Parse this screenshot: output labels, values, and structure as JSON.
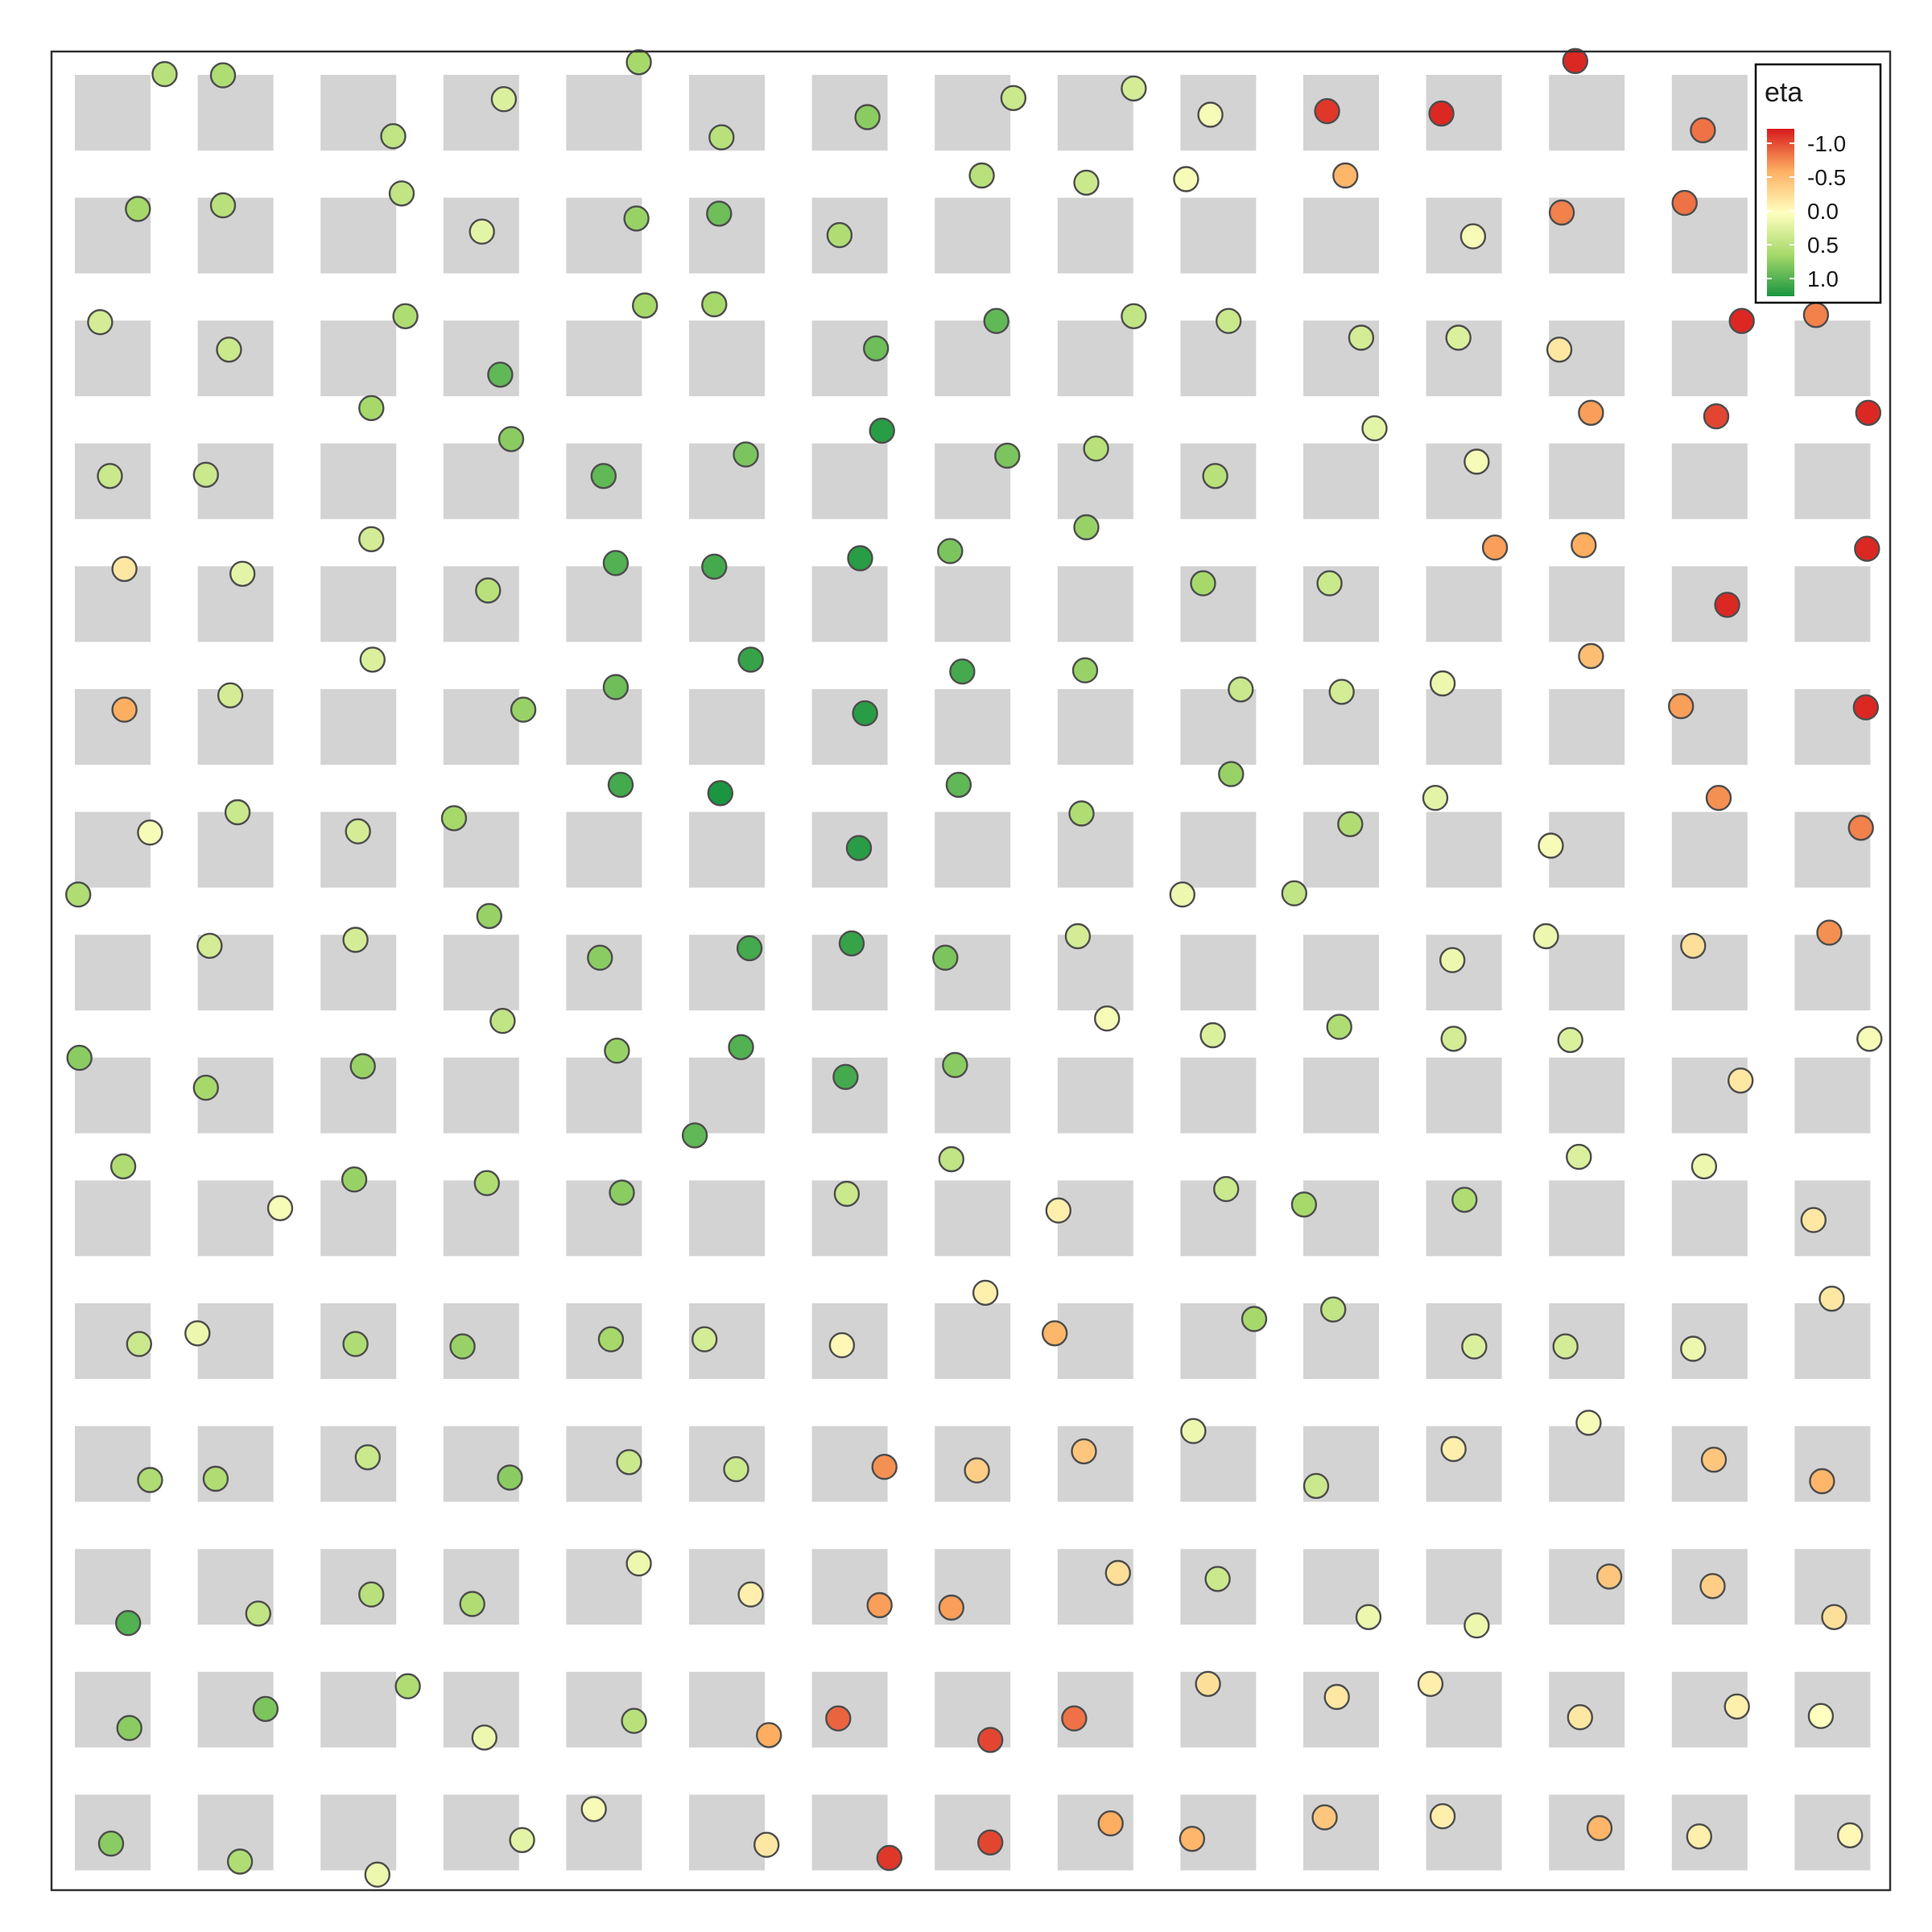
{
  "chart_data": {
    "type": "scatter",
    "xlim": [
      0,
      15
    ],
    "ylim": [
      0,
      15
    ],
    "grid_cells": {
      "columns": 15,
      "rows": 15
    },
    "background_tiles": "light-gray square per grid cell",
    "colors": {
      "plot_background": "#ffffff",
      "tile": "#d3d3d3",
      "border": "#333333",
      "point_outline": "#4d4d4d"
    },
    "legend": {
      "title": "eta",
      "placement": "top-right inside plot",
      "ticks": [
        -1.0,
        -0.5,
        0.0,
        0.5,
        1.0
      ],
      "tick_labels": [
        "-1.0",
        "-0.5",
        "0.0",
        "0.5",
        "1.0"
      ],
      "palette": "RdYlGn",
      "color_stops": [
        "#d7191c",
        "#fdae61",
        "#ffffbf",
        "#a6d96a",
        "#1a9641"
      ]
    },
    "points": [
      {
        "x": 0.59,
        "y": 14.76,
        "eta": 0.4
      },
      {
        "x": 1.07,
        "y": 14.75,
        "eta": 0.45
      },
      {
        "x": 2.47,
        "y": 14.24,
        "eta": 0.35
      },
      {
        "x": 3.38,
        "y": 14.55,
        "eta": 0.2
      },
      {
        "x": 4.49,
        "y": 14.86,
        "eta": 0.5
      },
      {
        "x": 5.17,
        "y": 14.23,
        "eta": 0.4
      },
      {
        "x": 6.37,
        "y": 14.4,
        "eta": 0.6
      },
      {
        "x": 7.57,
        "y": 14.56,
        "eta": 0.3
      },
      {
        "x": 8.56,
        "y": 14.64,
        "eta": 0.25
      },
      {
        "x": 9.19,
        "y": 14.42,
        "eta": 0.05
      },
      {
        "x": 10.15,
        "y": 14.45,
        "eta": -0.9
      },
      {
        "x": 11.09,
        "y": 14.43,
        "eta": -0.95
      },
      {
        "x": 12.19,
        "y": 14.87,
        "eta": -0.95
      },
      {
        "x": 13.24,
        "y": 14.29,
        "eta": -0.7
      },
      {
        "x": 0.37,
        "y": 13.63,
        "eta": 0.5
      },
      {
        "x": 1.07,
        "y": 13.66,
        "eta": 0.4
      },
      {
        "x": 2.54,
        "y": 13.76,
        "eta": 0.35
      },
      {
        "x": 3.2,
        "y": 13.44,
        "eta": 0.15
      },
      {
        "x": 4.47,
        "y": 13.55,
        "eta": 0.55
      },
      {
        "x": 5.15,
        "y": 13.59,
        "eta": 0.7
      },
      {
        "x": 6.14,
        "y": 13.41,
        "eta": 0.45
      },
      {
        "x": 7.31,
        "y": 13.91,
        "eta": 0.4
      },
      {
        "x": 8.17,
        "y": 13.85,
        "eta": 0.3
      },
      {
        "x": 8.99,
        "y": 13.88,
        "eta": 0.05
      },
      {
        "x": 10.3,
        "y": 13.91,
        "eta": -0.45
      },
      {
        "x": 11.35,
        "y": 13.4,
        "eta": 0.05
      },
      {
        "x": 12.08,
        "y": 13.6,
        "eta": -0.65
      },
      {
        "x": 13.09,
        "y": 13.68,
        "eta": -0.7
      },
      {
        "x": 0.06,
        "y": 12.68,
        "eta": 0.25
      },
      {
        "x": 1.12,
        "y": 12.45,
        "eta": 0.3
      },
      {
        "x": 2.57,
        "y": 12.73,
        "eta": 0.45
      },
      {
        "x": 3.35,
        "y": 12.24,
        "eta": 0.75
      },
      {
        "x": 4.54,
        "y": 12.82,
        "eta": 0.5
      },
      {
        "x": 5.11,
        "y": 12.83,
        "eta": 0.5
      },
      {
        "x": 6.44,
        "y": 12.46,
        "eta": 0.7
      },
      {
        "x": 7.43,
        "y": 12.69,
        "eta": 0.75
      },
      {
        "x": 8.56,
        "y": 12.73,
        "eta": 0.35
      },
      {
        "x": 9.34,
        "y": 12.69,
        "eta": 0.3
      },
      {
        "x": 10.43,
        "y": 12.55,
        "eta": 0.25
      },
      {
        "x": 11.23,
        "y": 12.55,
        "eta": 0.2
      },
      {
        "x": 12.06,
        "y": 12.45,
        "eta": -0.15
      },
      {
        "x": 13.56,
        "y": 12.69,
        "eta": -0.95
      },
      {
        "x": 14.17,
        "y": 12.74,
        "eta": -0.65
      },
      {
        "x": 0.14,
        "y": 11.39,
        "eta": 0.3
      },
      {
        "x": 0.93,
        "y": 11.4,
        "eta": 0.3
      },
      {
        "x": 2.29,
        "y": 11.96,
        "eta": 0.5
      },
      {
        "x": 3.44,
        "y": 11.7,
        "eta": 0.6
      },
      {
        "x": 4.2,
        "y": 11.39,
        "eta": 0.75
      },
      {
        "x": 5.37,
        "y": 11.57,
        "eta": 0.65
      },
      {
        "x": 6.49,
        "y": 11.77,
        "eta": 0.95
      },
      {
        "x": 7.52,
        "y": 11.56,
        "eta": 0.65
      },
      {
        "x": 8.25,
        "y": 11.62,
        "eta": 0.4
      },
      {
        "x": 9.23,
        "y": 11.39,
        "eta": 0.4
      },
      {
        "x": 10.54,
        "y": 11.79,
        "eta": 0.15
      },
      {
        "x": 11.38,
        "y": 11.51,
        "eta": 0.05
      },
      {
        "x": 12.32,
        "y": 11.92,
        "eta": -0.55
      },
      {
        "x": 13.35,
        "y": 11.89,
        "eta": -0.85
      },
      {
        "x": 14.6,
        "y": 11.92,
        "eta": -0.95
      },
      {
        "x": 0.26,
        "y": 10.61,
        "eta": -0.15
      },
      {
        "x": 1.23,
        "y": 10.57,
        "eta": 0.15
      },
      {
        "x": 2.29,
        "y": 10.86,
        "eta": 0.25
      },
      {
        "x": 3.25,
        "y": 10.43,
        "eta": 0.4
      },
      {
        "x": 4.3,
        "y": 10.66,
        "eta": 0.8
      },
      {
        "x": 5.11,
        "y": 10.63,
        "eta": 0.85
      },
      {
        "x": 6.31,
        "y": 10.7,
        "eta": 0.95
      },
      {
        "x": 7.05,
        "y": 10.76,
        "eta": 0.65
      },
      {
        "x": 8.17,
        "y": 10.96,
        "eta": 0.55
      },
      {
        "x": 9.13,
        "y": 10.49,
        "eta": 0.5
      },
      {
        "x": 10.17,
        "y": 10.49,
        "eta": 0.3
      },
      {
        "x": 11.53,
        "y": 10.79,
        "eta": -0.55
      },
      {
        "x": 12.26,
        "y": 10.81,
        "eta": -0.5
      },
      {
        "x": 13.44,
        "y": 10.31,
        "eta": -0.95
      },
      {
        "x": 14.59,
        "y": 10.78,
        "eta": -0.95
      },
      {
        "x": 0.26,
        "y": 9.43,
        "eta": -0.5
      },
      {
        "x": 1.13,
        "y": 9.55,
        "eta": 0.25
      },
      {
        "x": 2.3,
        "y": 9.85,
        "eta": 0.2
      },
      {
        "x": 3.54,
        "y": 9.43,
        "eta": 0.55
      },
      {
        "x": 4.3,
        "y": 9.62,
        "eta": 0.7
      },
      {
        "x": 5.41,
        "y": 9.85,
        "eta": 0.9
      },
      {
        "x": 6.35,
        "y": 9.4,
        "eta": 0.95
      },
      {
        "x": 7.15,
        "y": 9.75,
        "eta": 0.85
      },
      {
        "x": 8.16,
        "y": 9.76,
        "eta": 0.55
      },
      {
        "x": 9.44,
        "y": 9.6,
        "eta": 0.3
      },
      {
        "x": 10.27,
        "y": 9.58,
        "eta": 0.25
      },
      {
        "x": 11.1,
        "y": 9.65,
        "eta": 0.1
      },
      {
        "x": 12.32,
        "y": 9.88,
        "eta": -0.4
      },
      {
        "x": 13.06,
        "y": 9.46,
        "eta": -0.55
      },
      {
        "x": 14.58,
        "y": 9.45,
        "eta": -0.95
      },
      {
        "x": 0.47,
        "y": 8.4,
        "eta": 0.05
      },
      {
        "x": 1.19,
        "y": 8.57,
        "eta": 0.3
      },
      {
        "x": 2.18,
        "y": 8.41,
        "eta": 0.25
      },
      {
        "x": 2.97,
        "y": 8.52,
        "eta": 0.5
      },
      {
        "x": 4.34,
        "y": 8.8,
        "eta": 0.85
      },
      {
        "x": 5.16,
        "y": 8.73,
        "eta": 1.0
      },
      {
        "x": 6.3,
        "y": 8.27,
        "eta": 0.95
      },
      {
        "x": 7.12,
        "y": 8.8,
        "eta": 0.75
      },
      {
        "x": 8.13,
        "y": 8.56,
        "eta": 0.45
      },
      {
        "x": 9.36,
        "y": 8.89,
        "eta": 0.55
      },
      {
        "x": 10.34,
        "y": 8.47,
        "eta": 0.45
      },
      {
        "x": 11.04,
        "y": 8.69,
        "eta": 0.15
      },
      {
        "x": 11.99,
        "y": 8.29,
        "eta": 0.05
      },
      {
        "x": 13.37,
        "y": 8.69,
        "eta": -0.6
      },
      {
        "x": 14.54,
        "y": 8.44,
        "eta": -0.65
      },
      {
        "x": -0.12,
        "y": 7.88,
        "eta": 0.45
      },
      {
        "x": 0.96,
        "y": 7.45,
        "eta": 0.25
      },
      {
        "x": 2.16,
        "y": 7.5,
        "eta": 0.25
      },
      {
        "x": 3.26,
        "y": 7.7,
        "eta": 0.55
      },
      {
        "x": 4.17,
        "y": 7.35,
        "eta": 0.6
      },
      {
        "x": 5.4,
        "y": 7.43,
        "eta": 0.85
      },
      {
        "x": 6.24,
        "y": 7.47,
        "eta": 0.9
      },
      {
        "x": 7.01,
        "y": 7.35,
        "eta": 0.65
      },
      {
        "x": 8.1,
        "y": 7.53,
        "eta": 0.25
      },
      {
        "x": 8.96,
        "y": 7.88,
        "eta": 0.1
      },
      {
        "x": 9.88,
        "y": 7.89,
        "eta": 0.35
      },
      {
        "x": 11.18,
        "y": 7.33,
        "eta": 0.1
      },
      {
        "x": 11.95,
        "y": 7.53,
        "eta": 0.1
      },
      {
        "x": 13.16,
        "y": 7.45,
        "eta": -0.2
      },
      {
        "x": 14.28,
        "y": 7.56,
        "eta": -0.6
      },
      {
        "x": -0.11,
        "y": 6.51,
        "eta": 0.6
      },
      {
        "x": 0.93,
        "y": 6.26,
        "eta": 0.5
      },
      {
        "x": 2.22,
        "y": 6.44,
        "eta": 0.55
      },
      {
        "x": 3.37,
        "y": 6.82,
        "eta": 0.35
      },
      {
        "x": 4.31,
        "y": 6.57,
        "eta": 0.55
      },
      {
        "x": 5.33,
        "y": 6.6,
        "eta": 0.8
      },
      {
        "x": 6.19,
        "y": 6.35,
        "eta": 0.85
      },
      {
        "x": 7.09,
        "y": 6.45,
        "eta": 0.6
      },
      {
        "x": 8.34,
        "y": 6.84,
        "eta": 0.05
      },
      {
        "x": 9.21,
        "y": 6.7,
        "eta": 0.2
      },
      {
        "x": 10.25,
        "y": 6.77,
        "eta": 0.45
      },
      {
        "x": 11.19,
        "y": 6.67,
        "eta": 0.25
      },
      {
        "x": 12.15,
        "y": 6.66,
        "eta": 0.2
      },
      {
        "x": 13.55,
        "y": 6.32,
        "eta": -0.15
      },
      {
        "x": 14.61,
        "y": 6.67,
        "eta": 0.05
      },
      {
        "x": 0.25,
        "y": 5.6,
        "eta": 0.45
      },
      {
        "x": 1.54,
        "y": 5.25,
        "eta": 0.05
      },
      {
        "x": 2.15,
        "y": 5.49,
        "eta": 0.55
      },
      {
        "x": 3.24,
        "y": 5.46,
        "eta": 0.45
      },
      {
        "x": 4.35,
        "y": 5.38,
        "eta": 0.6
      },
      {
        "x": 4.95,
        "y": 5.86,
        "eta": 0.75
      },
      {
        "x": 6.2,
        "y": 5.37,
        "eta": 0.3
      },
      {
        "x": 7.06,
        "y": 5.66,
        "eta": 0.35
      },
      {
        "x": 7.94,
        "y": 5.23,
        "eta": -0.1
      },
      {
        "x": 9.32,
        "y": 5.41,
        "eta": 0.3
      },
      {
        "x": 9.96,
        "y": 5.28,
        "eta": 0.5
      },
      {
        "x": 11.28,
        "y": 5.32,
        "eta": 0.45
      },
      {
        "x": 12.22,
        "y": 5.68,
        "eta": 0.2
      },
      {
        "x": 13.25,
        "y": 5.6,
        "eta": 0.1
      },
      {
        "x": 14.15,
        "y": 5.15,
        "eta": -0.15
      },
      {
        "x": 0.38,
        "y": 4.11,
        "eta": 0.3
      },
      {
        "x": 0.86,
        "y": 4.2,
        "eta": 0.1
      },
      {
        "x": 2.16,
        "y": 4.11,
        "eta": 0.45
      },
      {
        "x": 3.04,
        "y": 4.09,
        "eta": 0.55
      },
      {
        "x": 4.26,
        "y": 4.15,
        "eta": 0.5
      },
      {
        "x": 5.03,
        "y": 4.15,
        "eta": 0.25
      },
      {
        "x": 6.16,
        "y": 4.1,
        "eta": -0.05
      },
      {
        "x": 7.34,
        "y": 4.54,
        "eta": -0.1
      },
      {
        "x": 7.91,
        "y": 4.2,
        "eta": -0.45
      },
      {
        "x": 9.55,
        "y": 4.32,
        "eta": 0.5
      },
      {
        "x": 10.2,
        "y": 4.4,
        "eta": 0.35
      },
      {
        "x": 11.36,
        "y": 4.09,
        "eta": 0.2
      },
      {
        "x": 12.11,
        "y": 4.09,
        "eta": 0.25
      },
      {
        "x": 13.16,
        "y": 4.07,
        "eta": 0.1
      },
      {
        "x": 14.3,
        "y": 4.49,
        "eta": -0.15
      },
      {
        "x": 0.47,
        "y": 2.97,
        "eta": 0.45
      },
      {
        "x": 1.01,
        "y": 2.98,
        "eta": 0.45
      },
      {
        "x": 2.26,
        "y": 3.16,
        "eta": 0.3
      },
      {
        "x": 3.43,
        "y": 2.99,
        "eta": 0.6
      },
      {
        "x": 4.41,
        "y": 3.12,
        "eta": 0.3
      },
      {
        "x": 5.29,
        "y": 3.06,
        "eta": 0.3
      },
      {
        "x": 6.51,
        "y": 3.08,
        "eta": -0.6
      },
      {
        "x": 7.27,
        "y": 3.05,
        "eta": -0.3
      },
      {
        "x": 8.15,
        "y": 3.21,
        "eta": -0.35
      },
      {
        "x": 9.05,
        "y": 3.38,
        "eta": 0.1
      },
      {
        "x": 10.06,
        "y": 2.92,
        "eta": 0.3
      },
      {
        "x": 11.19,
        "y": 3.23,
        "eta": -0.1
      },
      {
        "x": 12.3,
        "y": 3.45,
        "eta": 0.05
      },
      {
        "x": 13.33,
        "y": 3.14,
        "eta": -0.35
      },
      {
        "x": 14.22,
        "y": 2.96,
        "eta": -0.45
      },
      {
        "x": 0.29,
        "y": 1.77,
        "eta": 0.8
      },
      {
        "x": 1.36,
        "y": 1.85,
        "eta": 0.35
      },
      {
        "x": 2.29,
        "y": 2.01,
        "eta": 0.4
      },
      {
        "x": 3.12,
        "y": 1.93,
        "eta": 0.45
      },
      {
        "x": 4.49,
        "y": 2.27,
        "eta": 0.1
      },
      {
        "x": 5.41,
        "y": 2.01,
        "eta": -0.1
      },
      {
        "x": 6.47,
        "y": 1.92,
        "eta": -0.55
      },
      {
        "x": 7.06,
        "y": 1.9,
        "eta": -0.55
      },
      {
        "x": 8.43,
        "y": 2.19,
        "eta": -0.2
      },
      {
        "x": 9.25,
        "y": 2.14,
        "eta": 0.3
      },
      {
        "x": 10.49,
        "y": 1.82,
        "eta": 0.1
      },
      {
        "x": 11.38,
        "y": 1.75,
        "eta": 0.1
      },
      {
        "x": 12.47,
        "y": 2.16,
        "eta": -0.35
      },
      {
        "x": 13.32,
        "y": 2.08,
        "eta": -0.3
      },
      {
        "x": 14.32,
        "y": 1.82,
        "eta": -0.2
      },
      {
        "x": 0.3,
        "y": 0.89,
        "eta": 0.6
      },
      {
        "x": 1.42,
        "y": 1.05,
        "eta": 0.65
      },
      {
        "x": 2.59,
        "y": 1.24,
        "eta": 0.45
      },
      {
        "x": 3.22,
        "y": 0.81,
        "eta": 0.1
      },
      {
        "x": 4.45,
        "y": 0.95,
        "eta": 0.4
      },
      {
        "x": 5.56,
        "y": 0.83,
        "eta": -0.5
      },
      {
        "x": 6.13,
        "y": 0.97,
        "eta": -0.75
      },
      {
        "x": 7.38,
        "y": 0.79,
        "eta": -0.85
      },
      {
        "x": 8.07,
        "y": 0.97,
        "eta": -0.7
      },
      {
        "x": 9.17,
        "y": 1.26,
        "eta": -0.2
      },
      {
        "x": 10.23,
        "y": 1.15,
        "eta": -0.15
      },
      {
        "x": 11.0,
        "y": 1.26,
        "eta": -0.1
      },
      {
        "x": 12.23,
        "y": 0.98,
        "eta": -0.15
      },
      {
        "x": 13.52,
        "y": 1.07,
        "eta": -0.1
      },
      {
        "x": 14.21,
        "y": 0.99,
        "eta": 0.0
      },
      {
        "x": 0.15,
        "y": -0.08,
        "eta": 0.6
      },
      {
        "x": 1.21,
        "y": -0.23,
        "eta": 0.45
      },
      {
        "x": 2.34,
        "y": -0.34,
        "eta": 0.1
      },
      {
        "x": 3.53,
        "y": -0.05,
        "eta": 0.15
      },
      {
        "x": 4.12,
        "y": 0.21,
        "eta": 0.05
      },
      {
        "x": 5.54,
        "y": -0.09,
        "eta": -0.15
      },
      {
        "x": 6.55,
        "y": -0.2,
        "eta": -0.9
      },
      {
        "x": 7.38,
        "y": -0.07,
        "eta": -0.85
      },
      {
        "x": 8.37,
        "y": 0.09,
        "eta": -0.5
      },
      {
        "x": 9.04,
        "y": -0.04,
        "eta": -0.45
      },
      {
        "x": 10.13,
        "y": 0.14,
        "eta": -0.35
      },
      {
        "x": 11.1,
        "y": 0.15,
        "eta": -0.1
      },
      {
        "x": 12.39,
        "y": 0.05,
        "eta": -0.45
      },
      {
        "x": 13.21,
        "y": -0.02,
        "eta": -0.1
      },
      {
        "x": 14.45,
        "y": -0.01,
        "eta": -0.05
      }
    ]
  }
}
